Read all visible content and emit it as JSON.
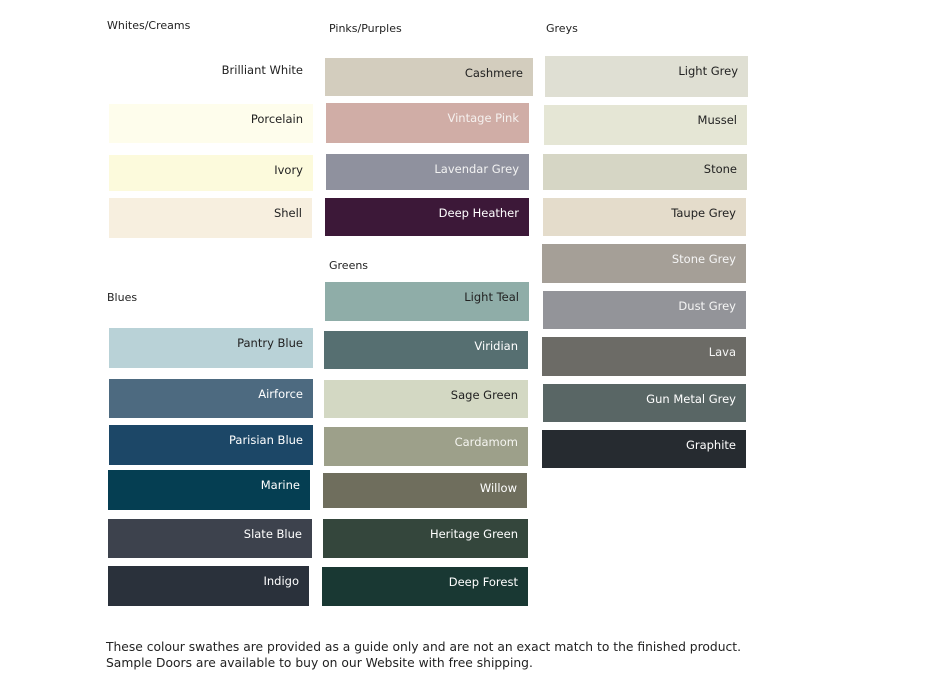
{
  "groups": [
    {
      "heading": "Whites/Creams",
      "swatches": [
        {
          "name": "Brilliant White",
          "color": "#ffffff",
          "text": "#222222"
        },
        {
          "name": "Porcelain",
          "color": "#fefdec",
          "text": "#222222"
        },
        {
          "name": "Ivory",
          "color": "#fcfadc",
          "text": "#222222"
        },
        {
          "name": "Shell",
          "color": "#f7efdf",
          "text": "#222222"
        }
      ]
    },
    {
      "heading": "Blues",
      "swatches": [
        {
          "name": "Pantry Blue",
          "color": "#b9d2d7",
          "text": "#222222"
        },
        {
          "name": "Airforce",
          "color": "#4d6a80",
          "text": "#ffffff"
        },
        {
          "name": "Parisian Blue",
          "color": "#1c4767",
          "text": "#ffffff"
        },
        {
          "name": "Marine",
          "color": "#053e52",
          "text": "#ffffff"
        },
        {
          "name": "Slate Blue",
          "color": "#3d424d",
          "text": "#ffffff"
        },
        {
          "name": "Indigo",
          "color": "#2a313b",
          "text": "#ffffff"
        }
      ]
    },
    {
      "heading": "Pinks/Purples",
      "swatches": [
        {
          "name": "Cashmere",
          "color": "#d3cdbe",
          "text": "#222222"
        },
        {
          "name": "Vintage Pink",
          "color": "#d0ada6",
          "text": "#f5f0ee"
        },
        {
          "name": "Lavendar Grey",
          "color": "#8f919e",
          "text": "#f2f2f2"
        },
        {
          "name": "Deep Heather",
          "color": "#3c1838",
          "text": "#ffffff"
        }
      ]
    },
    {
      "heading": "Greens",
      "swatches": [
        {
          "name": "Light Teal",
          "color": "#8fada8",
          "text": "#222222"
        },
        {
          "name": "Viridian",
          "color": "#566f71",
          "text": "#ffffff"
        },
        {
          "name": "Sage Green",
          "color": "#d3d8c3",
          "text": "#222222"
        },
        {
          "name": "Cardamom",
          "color": "#9da08a",
          "text": "#f5f5f0"
        },
        {
          "name": "Willow",
          "color": "#6f6e5d",
          "text": "#ffffff"
        },
        {
          "name": "Heritage Green",
          "color": "#34463c",
          "text": "#ffffff"
        },
        {
          "name": "Deep Forest",
          "color": "#193833",
          "text": "#ffffff"
        }
      ]
    },
    {
      "heading": "Greys",
      "swatches": [
        {
          "name": "Light Grey",
          "color": "#dfdfd3",
          "text": "#222222"
        },
        {
          "name": "Mussel",
          "color": "#e5e6d5",
          "text": "#222222"
        },
        {
          "name": "Stone",
          "color": "#d6d6c5",
          "text": "#222222"
        },
        {
          "name": "Taupe Grey",
          "color": "#e4dccb",
          "text": "#222222"
        },
        {
          "name": "Stone Grey",
          "color": "#a59f97",
          "text": "#f5f5f5"
        },
        {
          "name": "Dust Grey",
          "color": "#939499",
          "text": "#f5f5f5"
        },
        {
          "name": "Lava",
          "color": "#6c6b66",
          "text": "#f5f5f5"
        },
        {
          "name": "Gun Metal Grey",
          "color": "#596665",
          "text": "#ffffff"
        },
        {
          "name": "Graphite",
          "color": "#262b30",
          "text": "#ffffff"
        }
      ]
    }
  ],
  "footer": "These colour swathes are provided as a guide only and are not an exact match to the finished product.  Sample Doors are available to buy on our Website with free shipping."
}
